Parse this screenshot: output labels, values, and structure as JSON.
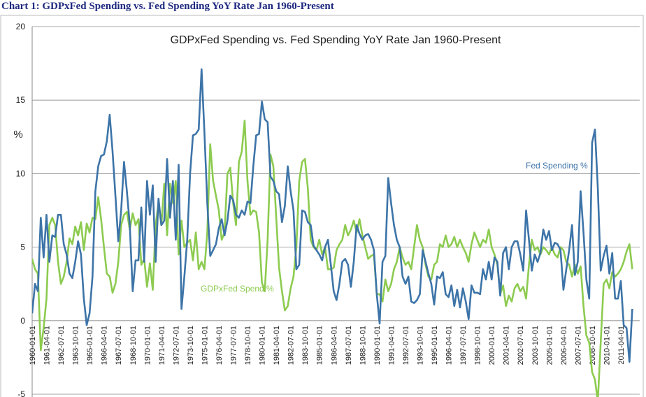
{
  "page_title": "Chart 1: GDPxFed Spending vs. Fed Spending YoY Rate Jan 1960-Present",
  "chart_data": {
    "type": "line",
    "title": "GDPxFed Spending vs. Fed Spending YoY Rate Jan 1960-Present",
    "y_label": "%",
    "ylim": [
      -5,
      20
    ],
    "yticks": [
      -5,
      0,
      5,
      10,
      15,
      20
    ],
    "grid": true,
    "categories": [
      "1960-01-01",
      null,
      null,
      null,
      null,
      "1961-04-01",
      null,
      null,
      null,
      null,
      "1962-07-01",
      null,
      null,
      null,
      null,
      "1963-10-01",
      null,
      null,
      null,
      null,
      "1965-01-01",
      null,
      null,
      null,
      null,
      "1966-04-01",
      null,
      null,
      null,
      null,
      "1967-07-01",
      null,
      null,
      null,
      null,
      "1968-10-01",
      null,
      null,
      null,
      null,
      "1970-01-01",
      null,
      null,
      null,
      null,
      "1971-04-01",
      null,
      null,
      null,
      null,
      "1972-07-01",
      null,
      null,
      null,
      null,
      "1973-10-01",
      null,
      null,
      null,
      null,
      "1975-01-01",
      null,
      null,
      null,
      null,
      "1976-04-01",
      null,
      null,
      null,
      null,
      "1977-07-01",
      null,
      null,
      null,
      null,
      "1978-10-01",
      null,
      null,
      null,
      null,
      "1980-01-01",
      null,
      null,
      null,
      null,
      "1981-04-01",
      null,
      null,
      null,
      null,
      "1982-07-01",
      null,
      null,
      null,
      null,
      "1983-10-01",
      null,
      null,
      null,
      null,
      "1985-01-01",
      null,
      null,
      null,
      null,
      "1986-04-01",
      null,
      null,
      null,
      null,
      "1987-07-01",
      null,
      null,
      null,
      null,
      "1988-10-01",
      null,
      null,
      null,
      null,
      "1990-01-01",
      null,
      null,
      null,
      null,
      "1991-04-01",
      null,
      null,
      null,
      null,
      "1992-07-01",
      null,
      null,
      null,
      null,
      "1993-10-01",
      null,
      null,
      null,
      null,
      "1995-01-01",
      null,
      null,
      null,
      null,
      "1996-04-01",
      null,
      null,
      null,
      null,
      "1997-07-01",
      null,
      null,
      null,
      null,
      "1998-10-01",
      null,
      null,
      null,
      null,
      "2000-01-01",
      null,
      null,
      null,
      null,
      "2001-04-01",
      null,
      null,
      null,
      null,
      "2002-07-01",
      null,
      null,
      null,
      null,
      "2003-10-01",
      null,
      null,
      null,
      null,
      "2005-01-01",
      null,
      null,
      null,
      null,
      "2006-04-01",
      null,
      null,
      null,
      null,
      "2007-07-01",
      null,
      null,
      null,
      null,
      "2008-10-01",
      null,
      null,
      null,
      null,
      "2010-01-01",
      null,
      null,
      null,
      null,
      "2011-04-01",
      null,
      null,
      null,
      null
    ],
    "series": [
      {
        "name": "Fed Spending %",
        "color": "#3d74a8",
        "values": [
          0.5,
          2.5,
          2,
          7,
          4.3,
          7.2,
          4,
          5.8,
          5.7,
          7.2,
          7.2,
          5.2,
          4.5,
          3.2,
          2.9,
          4,
          5.4,
          4.5,
          1.5,
          -0.3,
          0.5,
          3,
          8.8,
          10.5,
          11.2,
          11.3,
          12.2,
          14,
          11.5,
          8.5,
          5.4,
          7.5,
          10.8,
          8.8,
          6.5,
          2,
          4.1,
          4.1,
          7.7,
          4,
          9.5,
          7.2,
          9.2,
          4,
          8.3,
          6.5,
          6.8,
          11,
          7,
          9.5,
          5.5,
          10.6,
          0.8,
          3,
          5.5,
          10,
          12.6,
          12.7,
          13,
          17.1,
          12.8,
          8,
          4.4,
          4.8,
          5.2,
          6.3,
          6.9,
          5.8,
          6.8,
          8.5,
          8.2,
          7.2,
          7,
          7.5,
          7.2,
          8.1,
          8,
          10.5,
          12.6,
          12.7,
          14.9,
          13.7,
          13.5,
          9.8,
          9.5,
          8.8,
          8.6,
          6.7,
          7.8,
          10.5,
          8.8,
          7.5,
          3.5,
          3.8,
          7.5,
          7.4,
          6.7,
          6.5,
          5.1,
          4.8,
          4.5,
          4.1,
          5,
          5.5,
          3.8,
          2,
          1.4,
          2.5,
          4,
          4.2,
          3.8,
          2.3,
          4,
          6.5,
          5.9,
          5.5,
          5.8,
          5.9,
          5.5,
          4.8,
          1.8,
          -0.2,
          4,
          4.4,
          9.7,
          8,
          6.5,
          5.5,
          5,
          3,
          2.5,
          3,
          1.3,
          1.2,
          1.4,
          1.8,
          4.8,
          4,
          3.2,
          2.5,
          1.1,
          3,
          2.9,
          3.3,
          1.8,
          1.6,
          2.4,
          1,
          2.1,
          0.9,
          2.2,
          1.3,
          0.1,
          2.4,
          1.9,
          1.9,
          1.8,
          3.5,
          2.8,
          4,
          2.8,
          4.3,
          4,
          1.7,
          4.6,
          5,
          3.5,
          5,
          5.4,
          5.4,
          4.5,
          3.4,
          7.5,
          5.5,
          3.4,
          4.5,
          4,
          4.6,
          6.2,
          5.5,
          6.1,
          4.8,
          5.3,
          5.2,
          4.8,
          2.1,
          3.5,
          4.8,
          6.5,
          3.1,
          4,
          8.8,
          6,
          2.8,
          1.5,
          12.1,
          13,
          9,
          3.4,
          4.4,
          5.1,
          3.2,
          4.6,
          1.5,
          1.5,
          2.7,
          -0.3,
          -0.5,
          -2.8,
          0.8
        ]
      },
      {
        "name": "GDPxFed Spend %",
        "color": "#8dcb50",
        "values": [
          4.2,
          3.5,
          3.2,
          -2,
          -0.5,
          1.5,
          6.5,
          7,
          6.5,
          4,
          2.5,
          3,
          4,
          5.6,
          5.2,
          6.4,
          5.8,
          6.7,
          4.8,
          6.6,
          6,
          7,
          6.9,
          8.4,
          6.9,
          5,
          3.2,
          3,
          1.9,
          2.5,
          4,
          6.5,
          7.2,
          7.4,
          6.2,
          7.3,
          6.5,
          6.9,
          3.8,
          4.2,
          2.3,
          3.9,
          2.1,
          6.5,
          8,
          6.5,
          9.3,
          5.8,
          9.3,
          8,
          9.5,
          4.5,
          6.8,
          5,
          5.3,
          5.5,
          4.1,
          6,
          3.5,
          4,
          3.5,
          6,
          12,
          9.5,
          8.5,
          7.5,
          5.5,
          6,
          10,
          10.4,
          8,
          6.5,
          10.8,
          11.5,
          13.6,
          9.5,
          7.2,
          7.5,
          7.4,
          6,
          2.6,
          2,
          5.5,
          11.3,
          10.5,
          7,
          3.6,
          2,
          0.7,
          1,
          2.2,
          3,
          5,
          9.5,
          10.8,
          11,
          9,
          5.5,
          5,
          4.8,
          5.5,
          4.5,
          5,
          3.5,
          3.5,
          3.6,
          4.8,
          5.2,
          5.5,
          6.5,
          5.8,
          6.2,
          6.8,
          6,
          6.9,
          5.8,
          5,
          4.2,
          4.4,
          4.5,
          1.8,
          1.8,
          1.3,
          2.8,
          2,
          2.5,
          3.5,
          4,
          5,
          4.3,
          3.8,
          4,
          3.5,
          5,
          6.5,
          5.5,
          5,
          3.8,
          3,
          2.8,
          3.8,
          4,
          5.2,
          5,
          5.8,
          5,
          5.2,
          5.7,
          5,
          5.5,
          5,
          4.6,
          4,
          5.2,
          6,
          5.5,
          5,
          5.5,
          5.3,
          6.2,
          5,
          4.5,
          3.8,
          1.8,
          2.4,
          1,
          1.7,
          1.3,
          2.2,
          2.5,
          2,
          2.3,
          1.5,
          3.8,
          5.5,
          4.8,
          5,
          4.5,
          5,
          4.8,
          4.5,
          5,
          4.5,
          4.3,
          5,
          4.8,
          4,
          3.8,
          3,
          3.8,
          3.2,
          3.7,
          1,
          -1,
          -1.5,
          -3.5,
          -4,
          -5.5,
          -1.5,
          2.5,
          2.8,
          2.2,
          3.3,
          3,
          3.2,
          3.5,
          4,
          4.7,
          5.2,
          3.5
        ]
      }
    ]
  }
}
